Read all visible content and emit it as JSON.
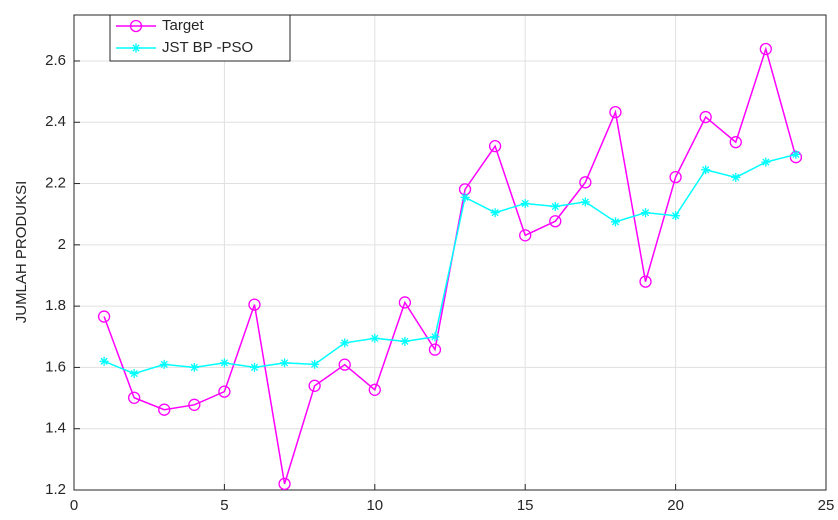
{
  "chart_data": {
    "type": "line",
    "ylabel": "JUMLAH PRODUKSI",
    "x": [
      1,
      2,
      3,
      4,
      5,
      6,
      7,
      8,
      9,
      10,
      11,
      12,
      13,
      14,
      15,
      16,
      17,
      18,
      19,
      20,
      21,
      22,
      23,
      24
    ],
    "series": [
      {
        "name": "Target",
        "color": "#ff00ff",
        "marker": "o",
        "values": [
          1.766,
          1.501,
          1.462,
          1.478,
          1.521,
          1.805,
          1.22,
          1.54,
          1.609,
          1.527,
          1.812,
          1.658,
          2.181,
          2.322,
          2.031,
          2.077,
          2.204,
          2.433,
          1.88,
          2.221,
          2.417,
          2.335,
          2.639,
          2.286
        ]
      },
      {
        "name": "JST BP -PSO",
        "color": "#00ffff",
        "marker": "*",
        "values": [
          1.62,
          1.58,
          1.61,
          1.6,
          1.615,
          1.6,
          1.615,
          1.61,
          1.68,
          1.695,
          1.685,
          1.7,
          2.155,
          2.105,
          2.135,
          2.125,
          2.14,
          2.075,
          2.105,
          2.095,
          2.245,
          2.22,
          2.27,
          2.295
        ]
      }
    ],
    "xlim": [
      0,
      25
    ],
    "xticks": [
      0,
      5,
      10,
      15,
      20,
      25
    ],
    "ylim": [
      1.2,
      2.75
    ],
    "yticks": [
      1.2,
      1.4,
      1.6,
      1.8,
      2,
      2.2,
      2.4,
      2.6
    ],
    "grid": true,
    "legend": "top-left"
  }
}
